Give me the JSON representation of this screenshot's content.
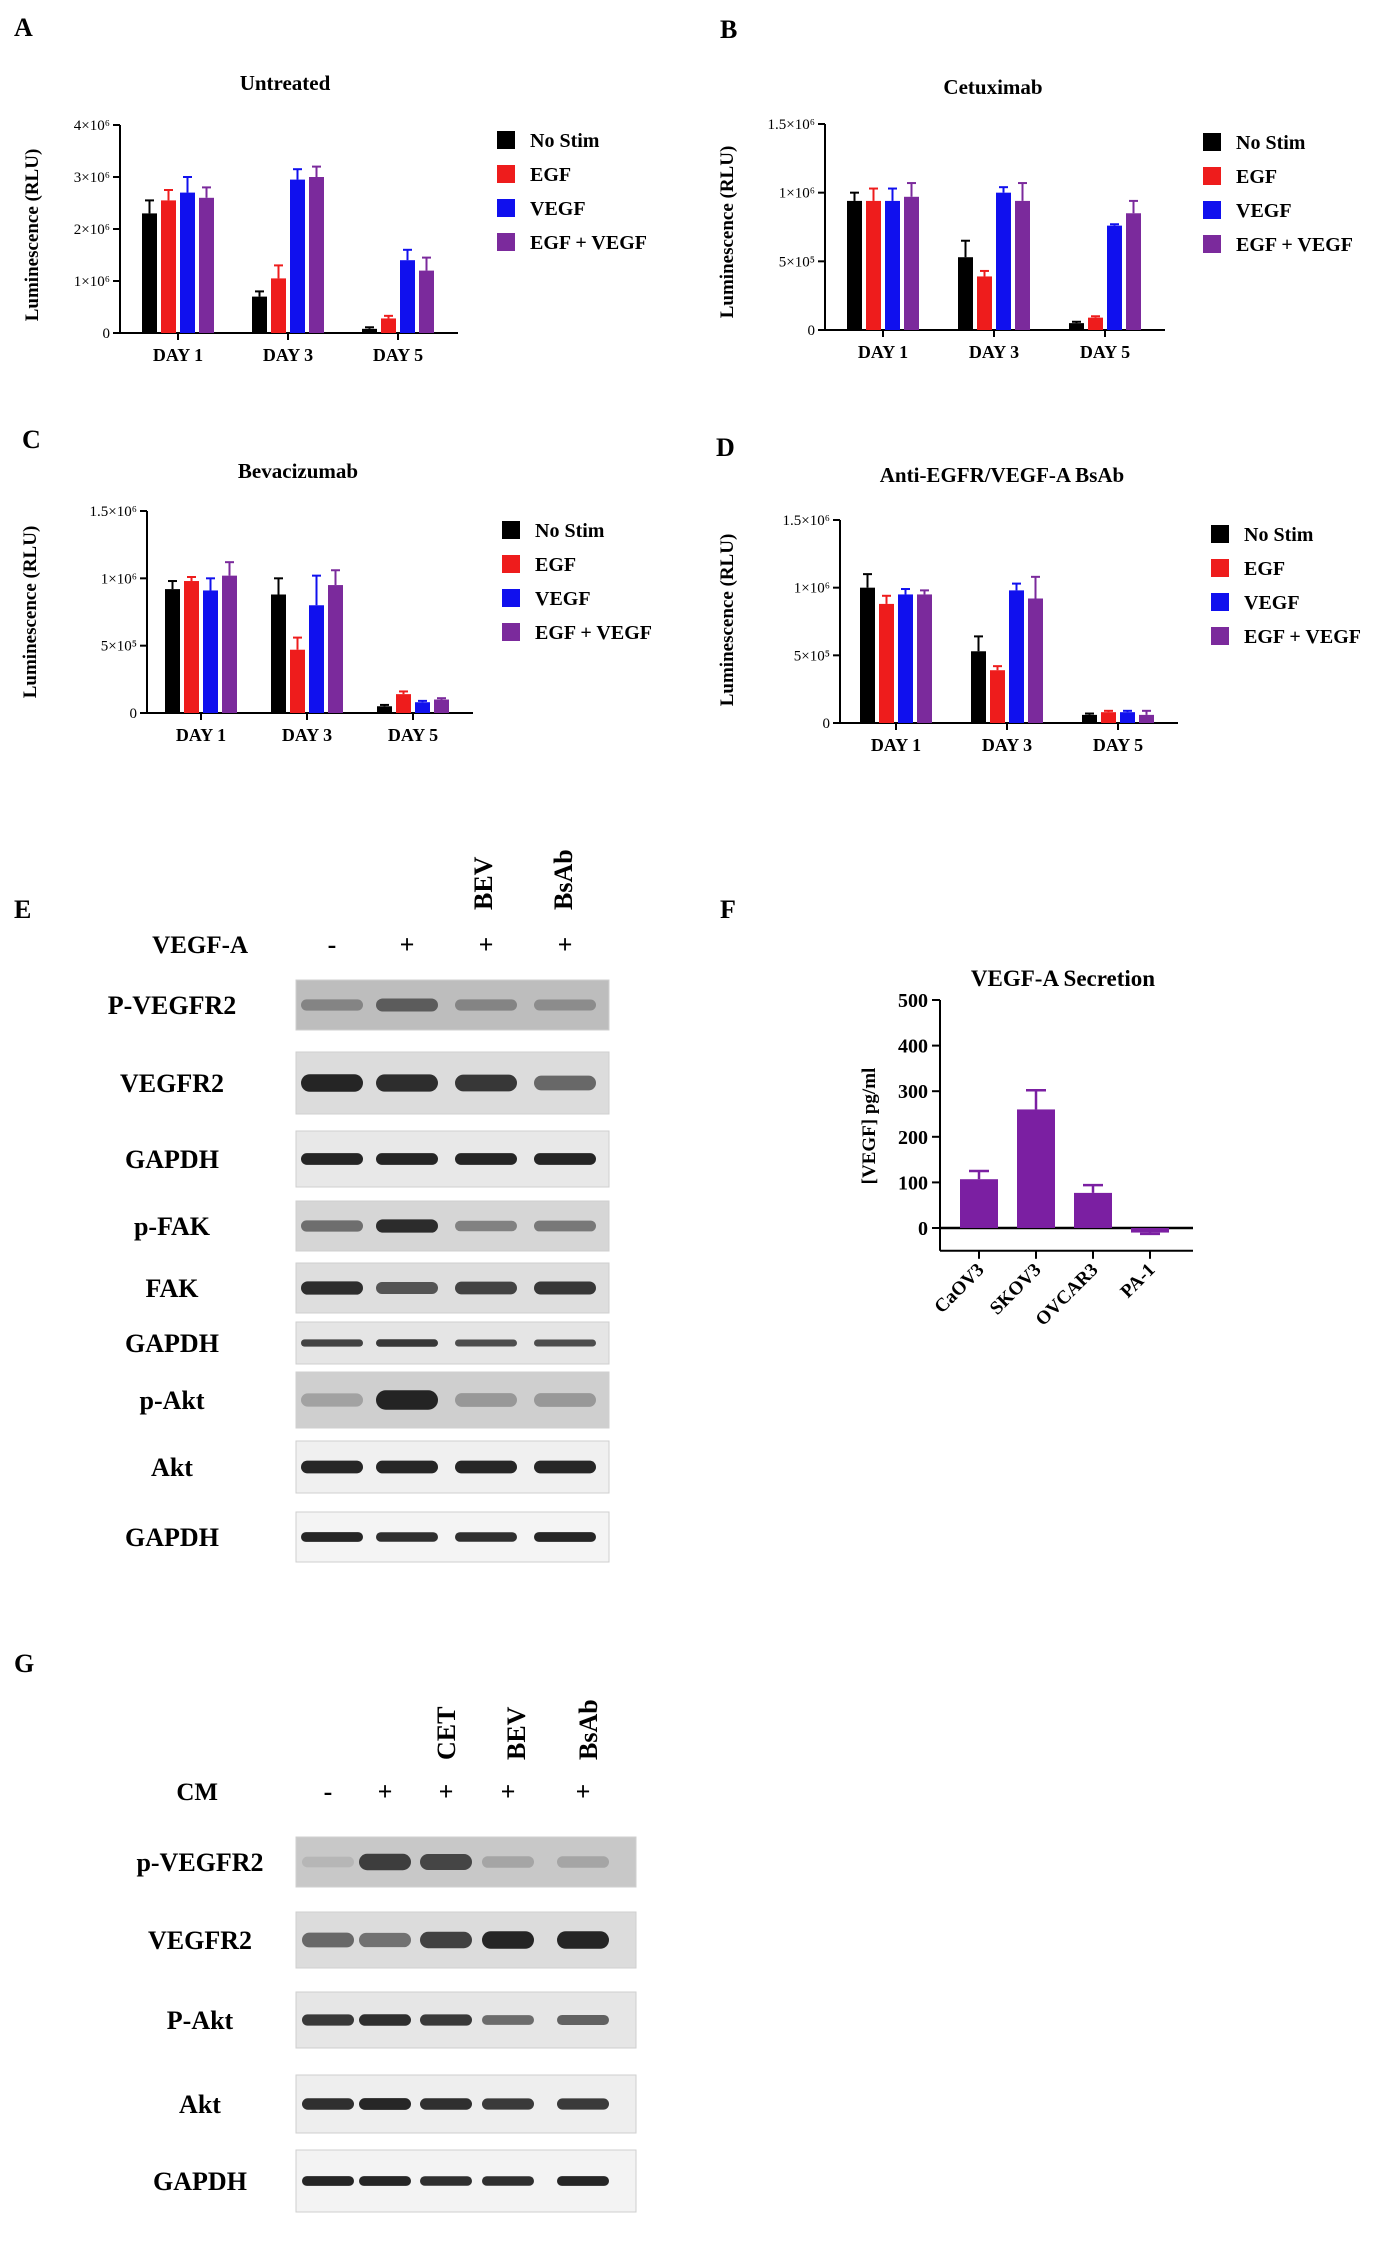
{
  "colors": {
    "No Stim": "#000000",
    "EGF": "#ee1c1c",
    "VEGF": "#1010ee",
    "EGF + VEGF": "#7b2a9c",
    "bar_purple": "#7b1fa2"
  },
  "panel_letters": [
    "A",
    "B",
    "C",
    "D",
    "E",
    "F",
    "G"
  ],
  "legend_labels": [
    "No Stim",
    "EGF",
    "VEGF",
    "EGF + VEGF"
  ],
  "chart_data": [
    {
      "panel": "A",
      "type": "bar",
      "title": "Untreated",
      "ylabel": "Luminescence (RLU)",
      "categories": [
        "DAY 1",
        "DAY 3",
        "DAY 5"
      ],
      "ylim": [
        0,
        4000000
      ],
      "yticks": [
        0,
        1000000,
        2000000,
        3000000,
        4000000
      ],
      "ytick_labels": [
        "0",
        "1×10⁶",
        "2×10⁶",
        "3×10⁶",
        "4×10⁶"
      ],
      "series": [
        {
          "name": "No Stim",
          "values": [
            2300000,
            700000,
            80000
          ],
          "errors": [
            250000,
            100000,
            30000
          ]
        },
        {
          "name": "EGF",
          "values": [
            2550000,
            1050000,
            280000
          ],
          "errors": [
            200000,
            250000,
            50000
          ]
        },
        {
          "name": "VEGF",
          "values": [
            2700000,
            2950000,
            1400000
          ],
          "errors": [
            300000,
            200000,
            200000
          ]
        },
        {
          "name": "EGF + VEGF",
          "values": [
            2600000,
            3000000,
            1200000
          ],
          "errors": [
            200000,
            200000,
            250000
          ]
        }
      ]
    },
    {
      "panel": "B",
      "type": "bar",
      "title": "Cetuximab",
      "ylabel": "Luminescence (RLU)",
      "categories": [
        "DAY 1",
        "DAY 3",
        "DAY 5"
      ],
      "ylim": [
        0,
        1500000
      ],
      "yticks": [
        0,
        500000,
        1000000,
        1500000
      ],
      "ytick_labels": [
        "0",
        "5×10⁵",
        "1×10⁶",
        "1.5×10⁶"
      ],
      "series": [
        {
          "name": "No Stim",
          "values": [
            940000,
            530000,
            50000
          ],
          "errors": [
            60000,
            120000,
            10000
          ]
        },
        {
          "name": "EGF",
          "values": [
            940000,
            390000,
            90000
          ],
          "errors": [
            90000,
            40000,
            10000
          ]
        },
        {
          "name": "VEGF",
          "values": [
            940000,
            1000000,
            760000
          ],
          "errors": [
            90000,
            40000,
            10000
          ]
        },
        {
          "name": "EGF + VEGF",
          "values": [
            970000,
            940000,
            850000
          ],
          "errors": [
            100000,
            130000,
            90000
          ]
        }
      ]
    },
    {
      "panel": "C",
      "type": "bar",
      "title": "Bevacizumab",
      "ylabel": "Luminescence (RLU)",
      "categories": [
        "DAY 1",
        "DAY 3",
        "DAY 5"
      ],
      "ylim": [
        0,
        1500000
      ],
      "yticks": [
        0,
        500000,
        1000000,
        1500000
      ],
      "ytick_labels": [
        "0",
        "5×10⁵",
        "1×10⁶",
        "1.5×10⁶"
      ],
      "series": [
        {
          "name": "No Stim",
          "values": [
            920000,
            880000,
            50000
          ],
          "errors": [
            60000,
            120000,
            10000
          ]
        },
        {
          "name": "EGF",
          "values": [
            980000,
            470000,
            140000
          ],
          "errors": [
            30000,
            90000,
            20000
          ]
        },
        {
          "name": "VEGF",
          "values": [
            910000,
            800000,
            80000
          ],
          "errors": [
            90000,
            220000,
            10000
          ]
        },
        {
          "name": "EGF + VEGF",
          "values": [
            1020000,
            950000,
            100000
          ],
          "errors": [
            100000,
            110000,
            10000
          ]
        }
      ]
    },
    {
      "panel": "D",
      "type": "bar",
      "title": "Anti-EGFR/VEGF-A BsAb",
      "ylabel": "Luminescence (RLU)",
      "categories": [
        "DAY 1",
        "DAY 3",
        "DAY 5"
      ],
      "ylim": [
        0,
        1500000
      ],
      "yticks": [
        0,
        500000,
        1000000,
        1500000
      ],
      "ytick_labels": [
        "0",
        "5×10⁵",
        "1×10⁶",
        "1.5×10⁶"
      ],
      "series": [
        {
          "name": "No Stim",
          "values": [
            1000000,
            530000,
            60000
          ],
          "errors": [
            100000,
            110000,
            10000
          ]
        },
        {
          "name": "EGF",
          "values": [
            880000,
            390000,
            80000
          ],
          "errors": [
            60000,
            30000,
            10000
          ]
        },
        {
          "name": "VEGF",
          "values": [
            950000,
            980000,
            80000
          ],
          "errors": [
            40000,
            50000,
            10000
          ]
        },
        {
          "name": "EGF + VEGF",
          "values": [
            950000,
            920000,
            60000
          ],
          "errors": [
            30000,
            160000,
            30000
          ]
        }
      ]
    },
    {
      "panel": "F",
      "type": "bar",
      "title": "VEGF-A Secretion",
      "ylabel": "[VEGF] pg/ml",
      "categories": [
        "CaOV3",
        "SKOV3",
        "OVCAR3",
        "PA-1"
      ],
      "ylim": [
        -50,
        500
      ],
      "yticks": [
        0,
        100,
        200,
        300,
        400,
        500
      ],
      "ytick_labels": [
        "0",
        "100",
        "200",
        "300",
        "400",
        "500"
      ],
      "series": [
        {
          "values": [
            107,
            260,
            77,
            -10
          ],
          "errors": [
            18,
            42,
            17,
            3
          ]
        }
      ]
    }
  ],
  "blot_E": {
    "top_labels": [
      "BEV",
      "BsAb"
    ],
    "treatment_label": "VEGF-A",
    "signs": [
      "-",
      "+",
      "+",
      "+"
    ],
    "rows": [
      "P-VEGFR2",
      "VEGFR2",
      "GAPDH",
      "p-FAK",
      "FAK",
      "GAPDH",
      "p-Akt",
      "Akt",
      "GAPDH"
    ]
  },
  "blot_G": {
    "top_labels": [
      "CET",
      "BEV",
      "BsAb"
    ],
    "treatment_label": "CM",
    "signs": [
      "-",
      "+",
      "+",
      "+",
      "+"
    ],
    "rows": [
      "p-VEGFR2",
      "VEGFR2",
      "P-Akt",
      "Akt",
      "GAPDH"
    ]
  }
}
